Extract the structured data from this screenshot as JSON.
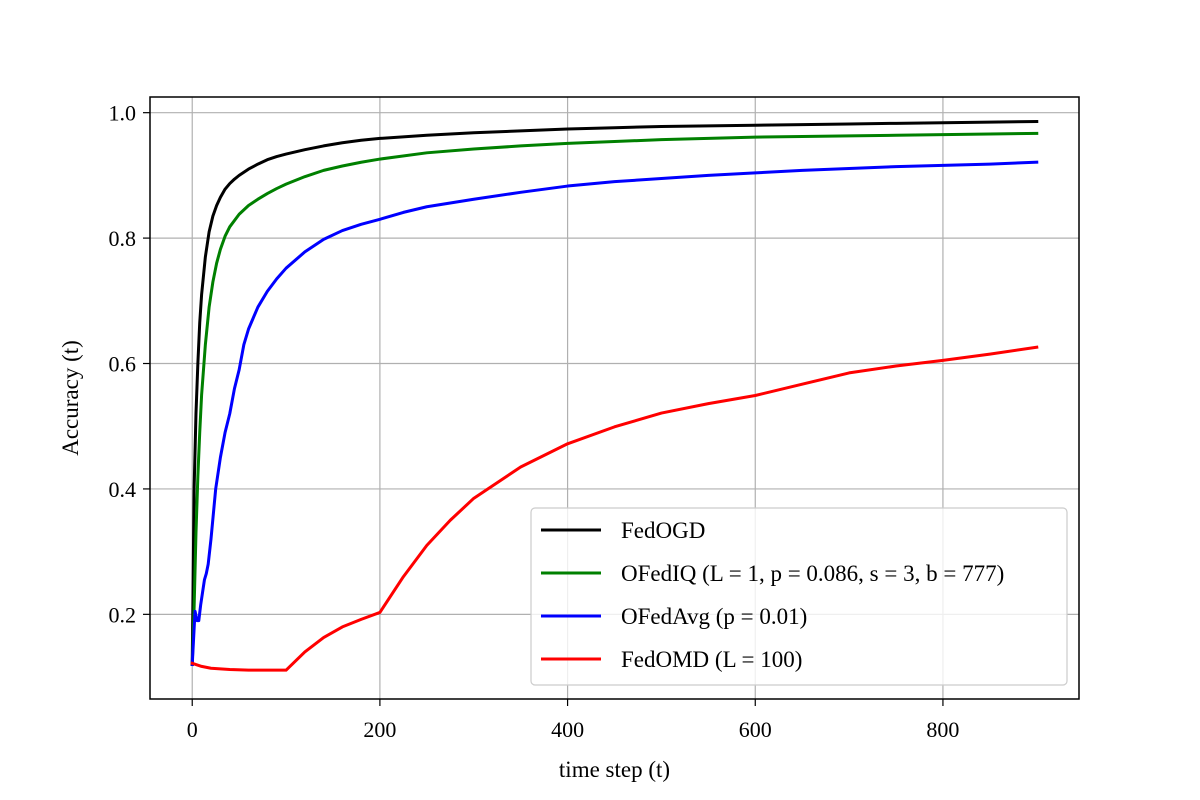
{
  "chart_data": {
    "type": "line",
    "title": "",
    "xlabel": "time step (t)",
    "ylabel": "Accuracy (t)",
    "xlim": [
      -45,
      945
    ],
    "ylim": [
      0.065,
      1.025
    ],
    "xticks": [
      0,
      200,
      400,
      600,
      800
    ],
    "xtick_labels": [
      "0",
      "200",
      "400",
      "600",
      "800"
    ],
    "yticks": [
      0.2,
      0.4,
      0.6,
      0.8,
      1.0
    ],
    "ytick_labels": [
      "0.2",
      "0.4",
      "0.6",
      "0.8",
      "1.0"
    ],
    "grid": true,
    "legend_position": "lower-right",
    "series": [
      {
        "name": "FedOGD",
        "color": "#000000",
        "x": [
          0,
          2,
          4,
          6,
          8,
          10,
          14,
          18,
          22,
          26,
          30,
          35,
          40,
          45,
          50,
          60,
          70,
          80,
          90,
          100,
          120,
          140,
          160,
          180,
          200,
          250,
          300,
          350,
          400,
          450,
          500,
          550,
          600,
          650,
          700,
          750,
          800,
          850,
          900
        ],
        "y": [
          0.12,
          0.4,
          0.52,
          0.6,
          0.665,
          0.71,
          0.77,
          0.81,
          0.835,
          0.852,
          0.865,
          0.878,
          0.887,
          0.894,
          0.9,
          0.91,
          0.918,
          0.925,
          0.93,
          0.934,
          0.941,
          0.947,
          0.952,
          0.956,
          0.959,
          0.964,
          0.968,
          0.971,
          0.974,
          0.976,
          0.978,
          0.979,
          0.98,
          0.981,
          0.982,
          0.983,
          0.984,
          0.985,
          0.986
        ]
      },
      {
        "name": "OFedIQ (L = 1, p = 0.086, s = 3, b = 777)",
        "color": "#008000",
        "x": [
          0,
          2,
          4,
          6,
          8,
          10,
          14,
          18,
          22,
          26,
          30,
          35,
          40,
          50,
          60,
          70,
          80,
          90,
          100,
          120,
          140,
          160,
          180,
          200,
          250,
          300,
          350,
          400,
          450,
          500,
          550,
          600,
          650,
          700,
          750,
          800,
          850,
          900
        ],
        "y": [
          0.12,
          0.21,
          0.33,
          0.42,
          0.49,
          0.55,
          0.63,
          0.69,
          0.73,
          0.76,
          0.782,
          0.803,
          0.818,
          0.838,
          0.852,
          0.862,
          0.871,
          0.879,
          0.886,
          0.898,
          0.908,
          0.915,
          0.921,
          0.926,
          0.936,
          0.942,
          0.947,
          0.951,
          0.954,
          0.957,
          0.959,
          0.961,
          0.962,
          0.963,
          0.964,
          0.965,
          0.966,
          0.967
        ]
      },
      {
        "name": "OFedAvg (p = 0.01)",
        "color": "#0000ff",
        "x": [
          0,
          3,
          5,
          7,
          9,
          11,
          13,
          15,
          17,
          20,
          25,
          30,
          35,
          40,
          45,
          50,
          55,
          60,
          70,
          80,
          90,
          100,
          120,
          140,
          160,
          180,
          200,
          225,
          250,
          300,
          350,
          400,
          450,
          500,
          550,
          600,
          650,
          700,
          750,
          800,
          850,
          900
        ],
        "y": [
          0.12,
          0.205,
          0.19,
          0.19,
          0.215,
          0.235,
          0.255,
          0.265,
          0.28,
          0.32,
          0.4,
          0.45,
          0.49,
          0.52,
          0.56,
          0.59,
          0.63,
          0.655,
          0.69,
          0.715,
          0.735,
          0.752,
          0.778,
          0.798,
          0.812,
          0.822,
          0.83,
          0.841,
          0.85,
          0.862,
          0.873,
          0.883,
          0.89,
          0.895,
          0.9,
          0.904,
          0.908,
          0.911,
          0.914,
          0.916,
          0.918,
          0.921
        ]
      },
      {
        "name": "FedOMD (L = 100)",
        "color": "#ff0000",
        "x": [
          0,
          10,
          20,
          40,
          60,
          80,
          100,
          120,
          140,
          160,
          180,
          200,
          225,
          250,
          275,
          300,
          350,
          400,
          450,
          500,
          550,
          600,
          650,
          700,
          750,
          800,
          850,
          900
        ],
        "y": [
          0.122,
          0.117,
          0.114,
          0.112,
          0.111,
          0.111,
          0.111,
          0.14,
          0.163,
          0.18,
          0.192,
          0.203,
          0.26,
          0.31,
          0.35,
          0.385,
          0.435,
          0.472,
          0.499,
          0.521,
          0.536,
          0.549,
          0.567,
          0.585,
          0.596,
          0.605,
          0.615,
          0.626
        ]
      }
    ]
  }
}
